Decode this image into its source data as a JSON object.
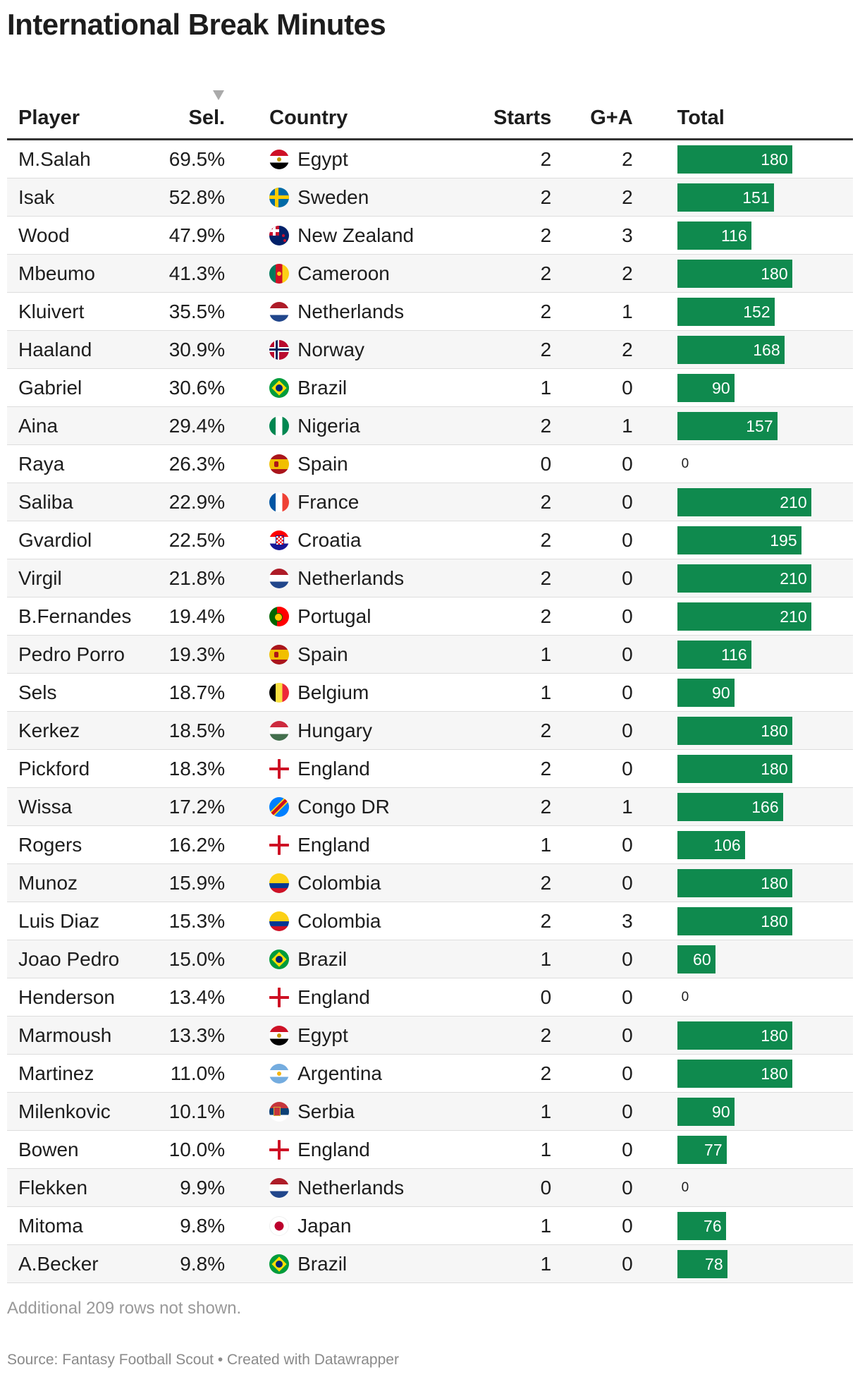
{
  "title": "International Break Minutes",
  "headers": {
    "player": "Player",
    "sel": "Sel.",
    "country": "Country",
    "starts": "Starts",
    "ga": "G+A",
    "total": "Total"
  },
  "sort_icon": "triangle-down-icon",
  "bar_color": "#0f8a4e",
  "chart_data": {
    "type": "table",
    "total_max": 210,
    "rows": [
      {
        "player": "M.Salah",
        "sel": "69.5%",
        "country": "Egypt",
        "flag": "egypt",
        "starts": "2",
        "ga": "2",
        "total": 180
      },
      {
        "player": "Isak",
        "sel": "52.8%",
        "country": "Sweden",
        "flag": "sweden",
        "starts": "2",
        "ga": "2",
        "total": 151
      },
      {
        "player": "Wood",
        "sel": "47.9%",
        "country": "New Zealand",
        "flag": "newzealand",
        "starts": "2",
        "ga": "3",
        "total": 116
      },
      {
        "player": "Mbeumo",
        "sel": "41.3%",
        "country": "Cameroon",
        "flag": "cameroon",
        "starts": "2",
        "ga": "2",
        "total": 180
      },
      {
        "player": "Kluivert",
        "sel": "35.5%",
        "country": "Netherlands",
        "flag": "netherlands",
        "starts": "2",
        "ga": "1",
        "total": 152
      },
      {
        "player": "Haaland",
        "sel": "30.9%",
        "country": "Norway",
        "flag": "norway",
        "starts": "2",
        "ga": "2",
        "total": 168
      },
      {
        "player": "Gabriel",
        "sel": "30.6%",
        "country": "Brazil",
        "flag": "brazil",
        "starts": "1",
        "ga": "0",
        "total": 90
      },
      {
        "player": "Aina",
        "sel": "29.4%",
        "country": "Nigeria",
        "flag": "nigeria",
        "starts": "2",
        "ga": "1",
        "total": 157
      },
      {
        "player": "Raya",
        "sel": "26.3%",
        "country": "Spain",
        "flag": "spain",
        "starts": "0",
        "ga": "0",
        "total": 0
      },
      {
        "player": "Saliba",
        "sel": "22.9%",
        "country": "France",
        "flag": "france",
        "starts": "2",
        "ga": "0",
        "total": 210
      },
      {
        "player": "Gvardiol",
        "sel": "22.5%",
        "country": "Croatia",
        "flag": "croatia",
        "starts": "2",
        "ga": "0",
        "total": 195
      },
      {
        "player": "Virgil",
        "sel": "21.8%",
        "country": "Netherlands",
        "flag": "netherlands",
        "starts": "2",
        "ga": "0",
        "total": 210
      },
      {
        "player": "B.Fernandes",
        "sel": "19.4%",
        "country": "Portugal",
        "flag": "portugal",
        "starts": "2",
        "ga": "0",
        "total": 210
      },
      {
        "player": "Pedro Porro",
        "sel": "19.3%",
        "country": "Spain",
        "flag": "spain",
        "starts": "1",
        "ga": "0",
        "total": 116
      },
      {
        "player": "Sels",
        "sel": "18.7%",
        "country": "Belgium",
        "flag": "belgium",
        "starts": "1",
        "ga": "0",
        "total": 90
      },
      {
        "player": "Kerkez",
        "sel": "18.5%",
        "country": "Hungary",
        "flag": "hungary",
        "starts": "2",
        "ga": "0",
        "total": 180
      },
      {
        "player": "Pickford",
        "sel": "18.3%",
        "country": "England",
        "flag": "england",
        "starts": "2",
        "ga": "0",
        "total": 180
      },
      {
        "player": "Wissa",
        "sel": "17.2%",
        "country": "Congo DR",
        "flag": "congodr",
        "starts": "2",
        "ga": "1",
        "total": 166
      },
      {
        "player": "Rogers",
        "sel": "16.2%",
        "country": "England",
        "flag": "england",
        "starts": "1",
        "ga": "0",
        "total": 106
      },
      {
        "player": "Munoz",
        "sel": "15.9%",
        "country": "Colombia",
        "flag": "colombia",
        "starts": "2",
        "ga": "0",
        "total": 180
      },
      {
        "player": "Luis Diaz",
        "sel": "15.3%",
        "country": "Colombia",
        "flag": "colombia",
        "starts": "2",
        "ga": "3",
        "total": 180
      },
      {
        "player": "Joao Pedro",
        "sel": "15.0%",
        "country": "Brazil",
        "flag": "brazil",
        "starts": "1",
        "ga": "0",
        "total": 60
      },
      {
        "player": "Henderson",
        "sel": "13.4%",
        "country": "England",
        "flag": "england",
        "starts": "0",
        "ga": "0",
        "total": 0
      },
      {
        "player": "Marmoush",
        "sel": "13.3%",
        "country": "Egypt",
        "flag": "egypt",
        "starts": "2",
        "ga": "0",
        "total": 180
      },
      {
        "player": "Martinez",
        "sel": "11.0%",
        "country": "Argentina",
        "flag": "argentina",
        "starts": "2",
        "ga": "0",
        "total": 180
      },
      {
        "player": "Milenkovic",
        "sel": "10.1%",
        "country": "Serbia",
        "flag": "serbia",
        "starts": "1",
        "ga": "0",
        "total": 90
      },
      {
        "player": "Bowen",
        "sel": "10.0%",
        "country": "England",
        "flag": "england",
        "starts": "1",
        "ga": "0",
        "total": 77
      },
      {
        "player": "Flekken",
        "sel": "9.9%",
        "country": "Netherlands",
        "flag": "netherlands",
        "starts": "0",
        "ga": "0",
        "total": 0
      },
      {
        "player": "Mitoma",
        "sel": "9.8%",
        "country": "Japan",
        "flag": "japan",
        "starts": "1",
        "ga": "0",
        "total": 76
      },
      {
        "player": "A.Becker",
        "sel": "9.8%",
        "country": "Brazil",
        "flag": "brazil",
        "starts": "1",
        "ga": "0",
        "total": 78
      }
    ]
  },
  "note": "Additional 209 rows not shown.",
  "source": "Source: Fantasy Football Scout • Created with Datawrapper"
}
